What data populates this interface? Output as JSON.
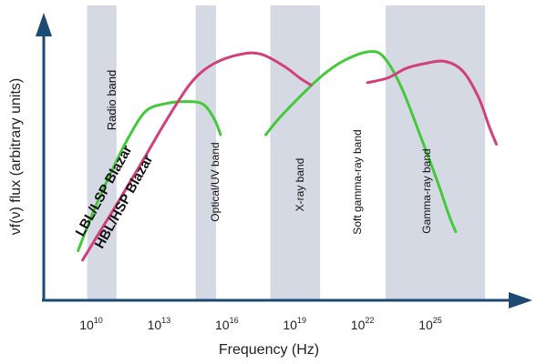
{
  "chart_data": {
    "type": "line",
    "title": "",
    "xlabel": "Frequency (Hz)",
    "ylabel": "νf(ν) flux (arbitrary units)",
    "x_scale": "log",
    "xlim_exponent": [
      8.5,
      27.8
    ],
    "ylim": [
      0,
      100
    ],
    "grid": false,
    "legend": "none",
    "x_ticks": [
      {
        "base": "10",
        "exp": "10",
        "value": 10
      },
      {
        "base": "10",
        "exp": "13",
        "value": 13
      },
      {
        "base": "10",
        "exp": "16",
        "value": 16
      },
      {
        "base": "10",
        "exp": "19",
        "value": 19
      },
      {
        "base": "10",
        "exp": "22",
        "value": 22
      },
      {
        "base": "10",
        "exp": "25",
        "value": 25
      }
    ],
    "bands": [
      {
        "label": "Radio band",
        "from": 9.5,
        "to": 10.8
      },
      {
        "label": "Optical/UV band",
        "from": 14.3,
        "to": 15.2
      },
      {
        "label": "X-ray band",
        "from": 17.6,
        "to": 19.8
      },
      {
        "label": "Soft gamma-ray band",
        "from": 22.7,
        "to": 27.1
      },
      {
        "label": "Gamma-ray band",
        "from": 22.7,
        "to": 27.1
      }
    ],
    "series": [
      {
        "name": "LBL/LSP Blazar",
        "color": "#44c93a",
        "segments": [
          [
            [
              9.1,
              21
            ],
            [
              9.8,
              38
            ],
            [
              10.6,
              55
            ],
            [
              11.4,
              70
            ],
            [
              12.1,
              80
            ],
            [
              12.9,
              83
            ],
            [
              13.8,
              84
            ],
            [
              14.6,
              83
            ],
            [
              15.1,
              77
            ],
            [
              15.4,
              70
            ]
          ],
          [
            [
              17.4,
              70
            ],
            [
              18.0,
              77
            ],
            [
              18.9,
              86
            ],
            [
              19.9,
              95
            ],
            [
              20.8,
              101
            ],
            [
              21.9,
              105
            ],
            [
              22.6,
              103
            ],
            [
              23.4,
              90
            ],
            [
              24.3,
              68
            ],
            [
              25.0,
              50
            ],
            [
              25.5,
              36
            ],
            [
              25.8,
              29
            ]
          ]
        ]
      },
      {
        "name": "HBL/HSP Blazar",
        "color": "#d1407a",
        "segments": [
          [
            [
              9.3,
              17
            ],
            [
              10.0,
              28
            ],
            [
              10.9,
              42
            ],
            [
              11.9,
              58
            ],
            [
              13.0,
              76
            ],
            [
              14.1,
              92
            ],
            [
              15.1,
              100
            ],
            [
              16.3,
              104
            ],
            [
              17.2,
              104
            ],
            [
              18.2,
              99
            ],
            [
              18.9,
              94
            ],
            [
              19.4,
              91
            ]
          ],
          [
            [
              21.9,
              92
            ],
            [
              22.8,
              94
            ],
            [
              23.6,
              98
            ],
            [
              24.4,
              100
            ],
            [
              25.3,
              101
            ],
            [
              26.1,
              97
            ],
            [
              26.8,
              86
            ],
            [
              27.3,
              73
            ],
            [
              27.6,
              66
            ]
          ]
        ]
      }
    ]
  }
}
